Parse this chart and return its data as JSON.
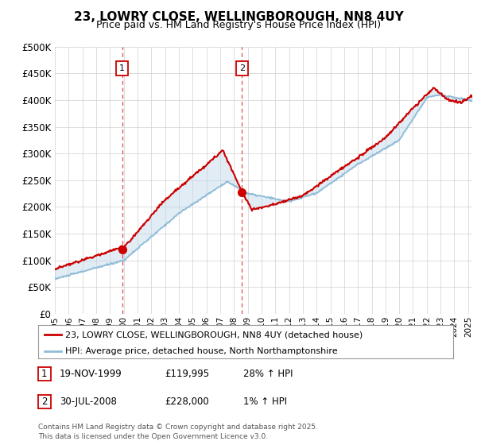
{
  "title": "23, LOWRY CLOSE, WELLINGBOROUGH, NN8 4UY",
  "subtitle": "Price paid vs. HM Land Registry's House Price Index (HPI)",
  "ylim": [
    0,
    500000
  ],
  "ytick_vals": [
    0,
    50000,
    100000,
    150000,
    200000,
    250000,
    300000,
    350000,
    400000,
    450000,
    500000
  ],
  "sale1_date": 1999.88,
  "sale1_price": 119995,
  "sale2_date": 2008.58,
  "sale2_price": 228000,
  "legend_red": "23, LOWRY CLOSE, WELLINGBOROUGH, NN8 4UY (detached house)",
  "legend_blue": "HPI: Average price, detached house, North Northamptonshire",
  "table_row1": [
    "1",
    "19-NOV-1999",
    "£119,995",
    "28% ↑ HPI"
  ],
  "table_row2": [
    "2",
    "30-JUL-2008",
    "£228,000",
    "1% ↑ HPI"
  ],
  "footer": "Contains HM Land Registry data © Crown copyright and database right 2025.\nThis data is licensed under the Open Government Licence v3.0.",
  "bg_color": "#ffffff",
  "red_color": "#cc0000",
  "blue_color": "#90bcd8",
  "blue_fill": "#cce0ef",
  "shade_color": "#ddeeff"
}
